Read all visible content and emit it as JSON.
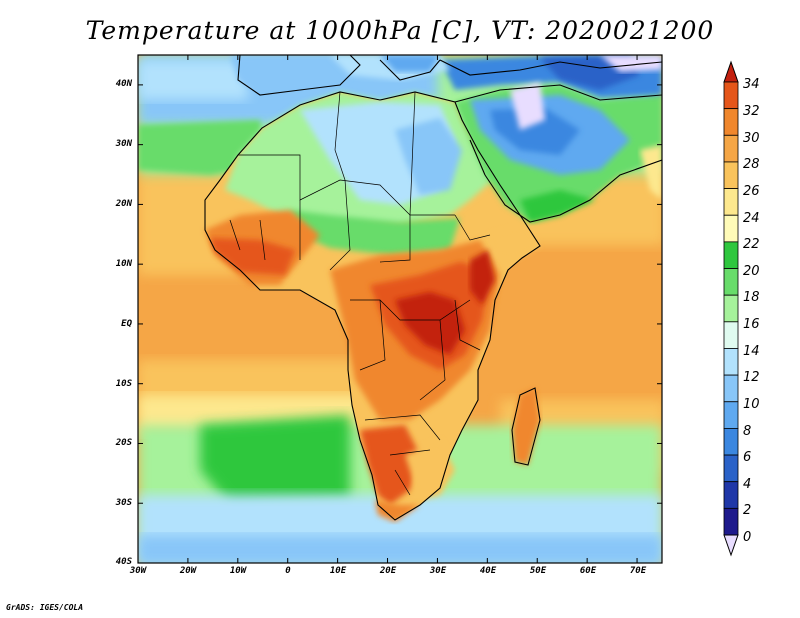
{
  "title": "Temperature at 1000hPa [C], VT: 2020021200",
  "footer": "GrADS: IGES/COLA",
  "map": {
    "variable": "Temperature at 1000hPa",
    "units": "C",
    "valid_time": "2020021200",
    "lon_range": [
      -30,
      75
    ],
    "lat_range": [
      -40,
      45
    ],
    "lat_labels": [
      "40N",
      "30N",
      "20N",
      "10N",
      "EQ",
      "10S",
      "20S",
      "30S",
      "40S"
    ],
    "lon_labels": [
      "30W",
      "20W",
      "10W",
      "0",
      "10E",
      "20E",
      "30E",
      "40E",
      "50E",
      "60E",
      "70E"
    ]
  },
  "colorbar": {
    "labels": [
      "34",
      "32",
      "30",
      "28",
      "26",
      "24",
      "22",
      "20",
      "18",
      "16",
      "14",
      "12",
      "10",
      "8",
      "6",
      "4",
      "2",
      "0"
    ],
    "colors": [
      "#e8ddff",
      "#1e1a8c",
      "#1f37a8",
      "#2a62c8",
      "#3b87e0",
      "#5fa9f0",
      "#88c6f8",
      "#b2e2fd",
      "#e0fbf0",
      "#a6f29b",
      "#68dc6a",
      "#2fc73e",
      "#fffbb8",
      "#fde88e",
      "#f9c35c",
      "#f5a646",
      "#f0872d",
      "#e5561a",
      "#c3200f"
    ],
    "color_names": [
      "lavender",
      "navy",
      "dark-blue",
      "blue",
      "mid-blue",
      "light-blue",
      "sky-blue",
      "pale-blue",
      "mint",
      "light-green",
      "green",
      "dark-green",
      "pale-yellow",
      "light-yellow",
      "yellow-orange",
      "light-orange",
      "orange",
      "red-orange",
      "red"
    ]
  }
}
